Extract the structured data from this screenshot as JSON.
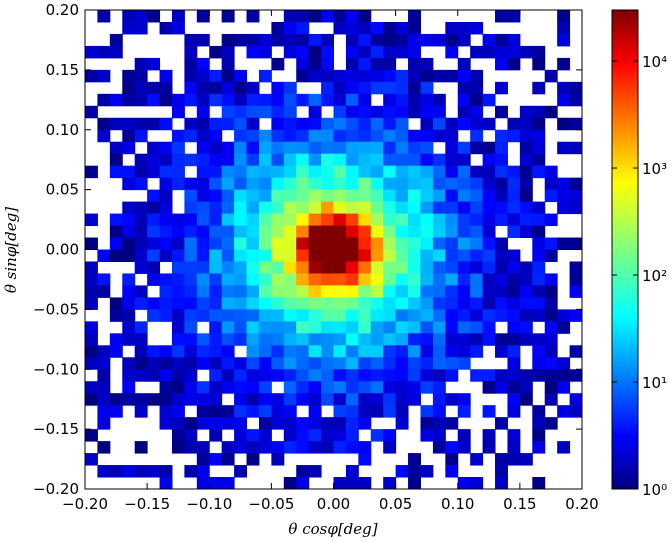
{
  "chart_data": {
    "type": "heatmap",
    "title": "",
    "xlabel": "θ cosφ[deg]",
    "ylabel": "θ sinφ[deg]",
    "xlim": [
      -0.2,
      0.2
    ],
    "ylim": [
      -0.2,
      0.2
    ],
    "x_ticks": [
      "−0.20",
      "−0.15",
      "−0.10",
      "−0.05",
      "0.00",
      "0.05",
      "0.10",
      "0.15",
      "0.20"
    ],
    "y_ticks": [
      "−0.20",
      "−0.15",
      "−0.10",
      "−0.05",
      "0.00",
      "0.05",
      "0.10",
      "0.15",
      "0.20"
    ],
    "bins": [
      40,
      40
    ],
    "colorscale": "jet",
    "color_scale_type": "log",
    "colorbar_range": [
      1,
      30000
    ],
    "colorbar_ticks": [
      {
        "value": 1,
        "label": "10⁰"
      },
      {
        "value": 10,
        "label": "10¹"
      },
      {
        "value": 100,
        "label": "10²"
      },
      {
        "value": 1000,
        "label": "10³"
      },
      {
        "value": 10000,
        "label": "10⁴"
      }
    ],
    "peak": {
      "x": 0.0,
      "y": 0.0,
      "count": 30000
    },
    "empty_bins_color": "#ffffff",
    "grid": false
  }
}
